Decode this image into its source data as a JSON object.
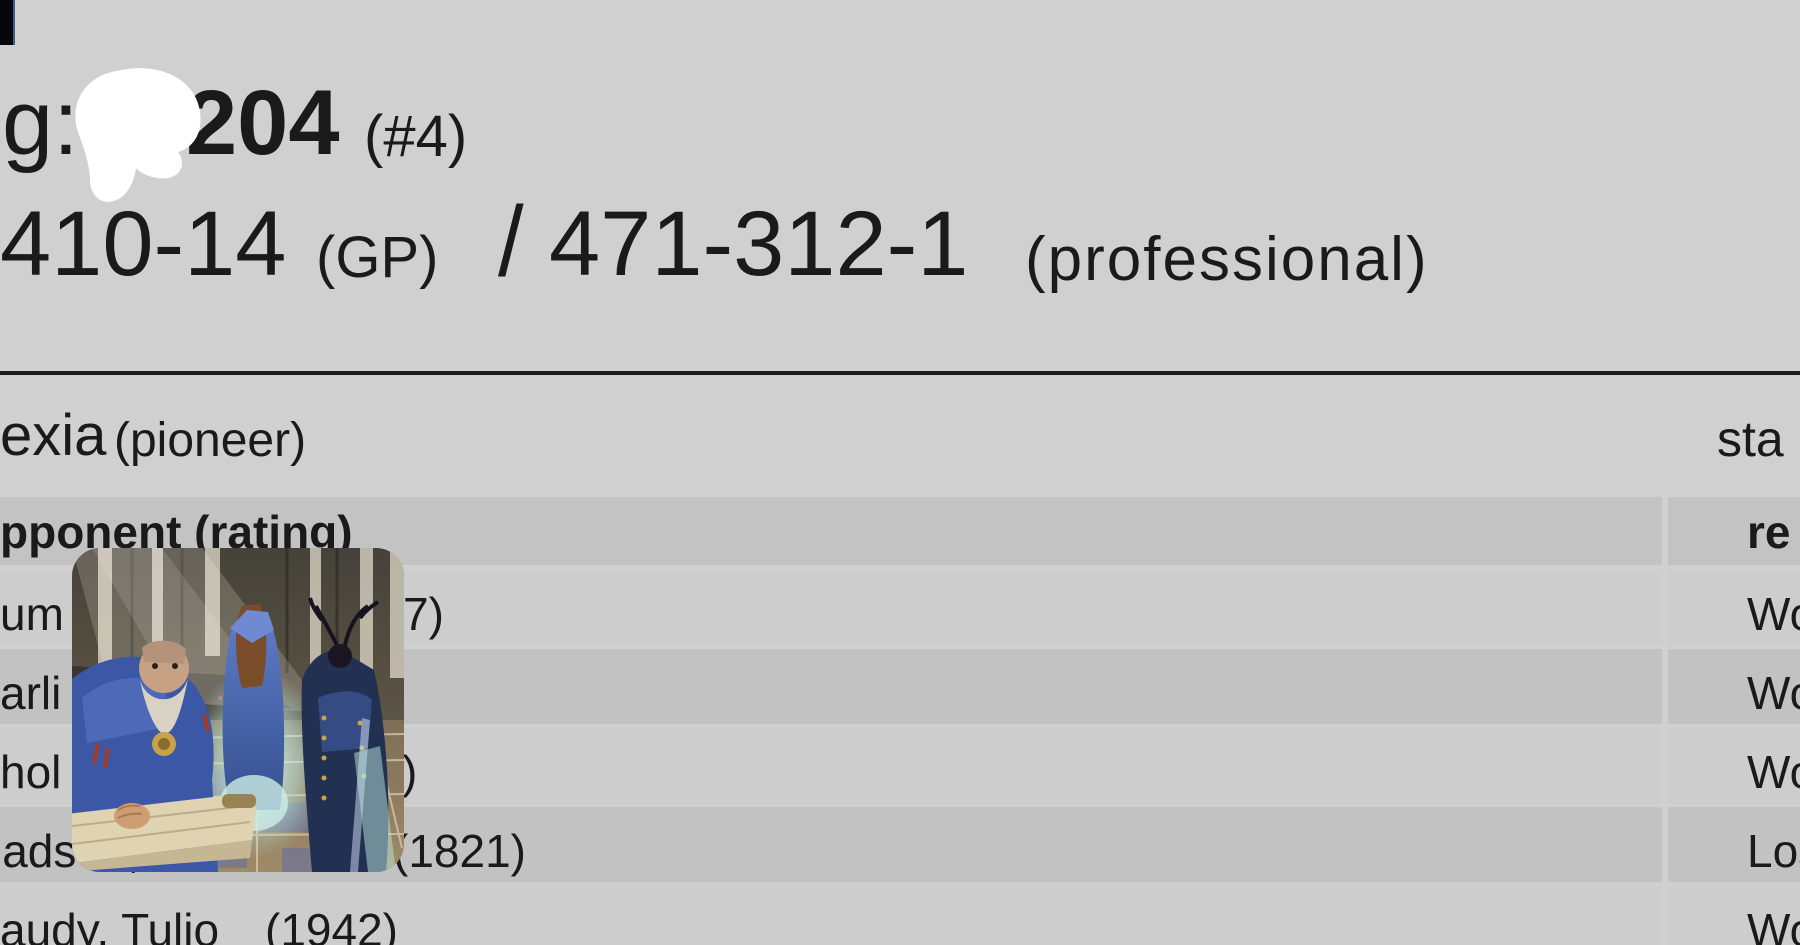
{
  "colors": {
    "page_bg": "#d0d0d0",
    "row_light": "#cdcdcd",
    "row_dark": "#c2c2c2",
    "header_band": "#c3c3c3",
    "rule": "#1c1c1c",
    "text": "#1a1a1a",
    "redaction_blob": "#ffffff"
  },
  "masthead": {
    "line1": {
      "lead_fragment": "g:",
      "score_bold": "204",
      "rank": "(#4)"
    },
    "line2": {
      "record_gp": "410-14",
      "gp_label": "(GP)",
      "divider": "/",
      "record_pro": "471-312-1",
      "pro_label": "(professional)"
    }
  },
  "section_bar": {
    "event_fragment": "exia",
    "format_label": "(pioneer)",
    "standings_fragment": "sta"
  },
  "results_table": {
    "opponent_header_fragment": "pponent (rating)",
    "result_header_fragment": "re",
    "rows": [
      {
        "opponent_fragment": "um",
        "rating_fragment": "7)",
        "result": "Won"
      },
      {
        "opponent_fragment": "arli",
        "rating_fragment": "",
        "result": "Won"
      },
      {
        "opponent_fragment": "hol",
        "rating_fragment": ")",
        "result": "Won"
      },
      {
        "opponent_fragment": "ladsen, Benton",
        "rating_fragment": "(1821)",
        "result": "Lost"
      },
      {
        "opponent_fragment": "audy, Tulio",
        "rating_fragment": "(1942)",
        "result": "Won"
      }
    ]
  },
  "card_art": {
    "name": "blue-robed-figures-hall-card-art"
  }
}
